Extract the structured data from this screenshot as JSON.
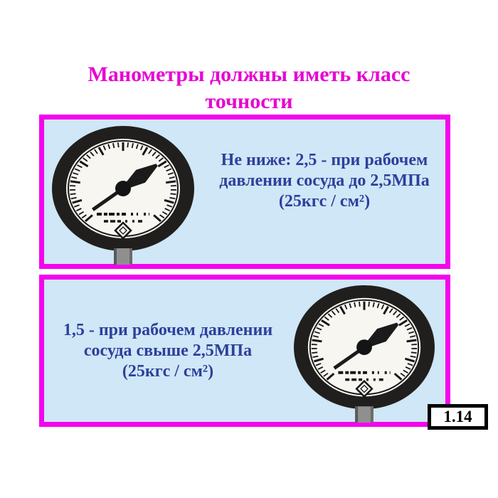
{
  "title": {
    "line1": "Манометры должны иметь класс",
    "line2": "точности"
  },
  "panels": [
    {
      "lines": [
        "Не ниже: 2,5 - при рабочем",
        "давлении сосуда до 2,5МПа",
        "(25кгс / см²)"
      ]
    },
    {
      "lines": [
        "1,5 - при рабочем давлении",
        "сосуда свыше 2,5МПа",
        "(25кгс / см²)"
      ]
    }
  ],
  "slide_number": "1.14",
  "colors": {
    "accent_border_magenta": "#f404ee",
    "title_magenta": "#e606d2",
    "panel_background_blue": "#cfe7f6",
    "body_text_blue": "#2e3f9c",
    "page_background": "#ffffff",
    "badge_border_black": "#000000"
  },
  "icons": {
    "gauge": "pressure-gauge-icon"
  }
}
